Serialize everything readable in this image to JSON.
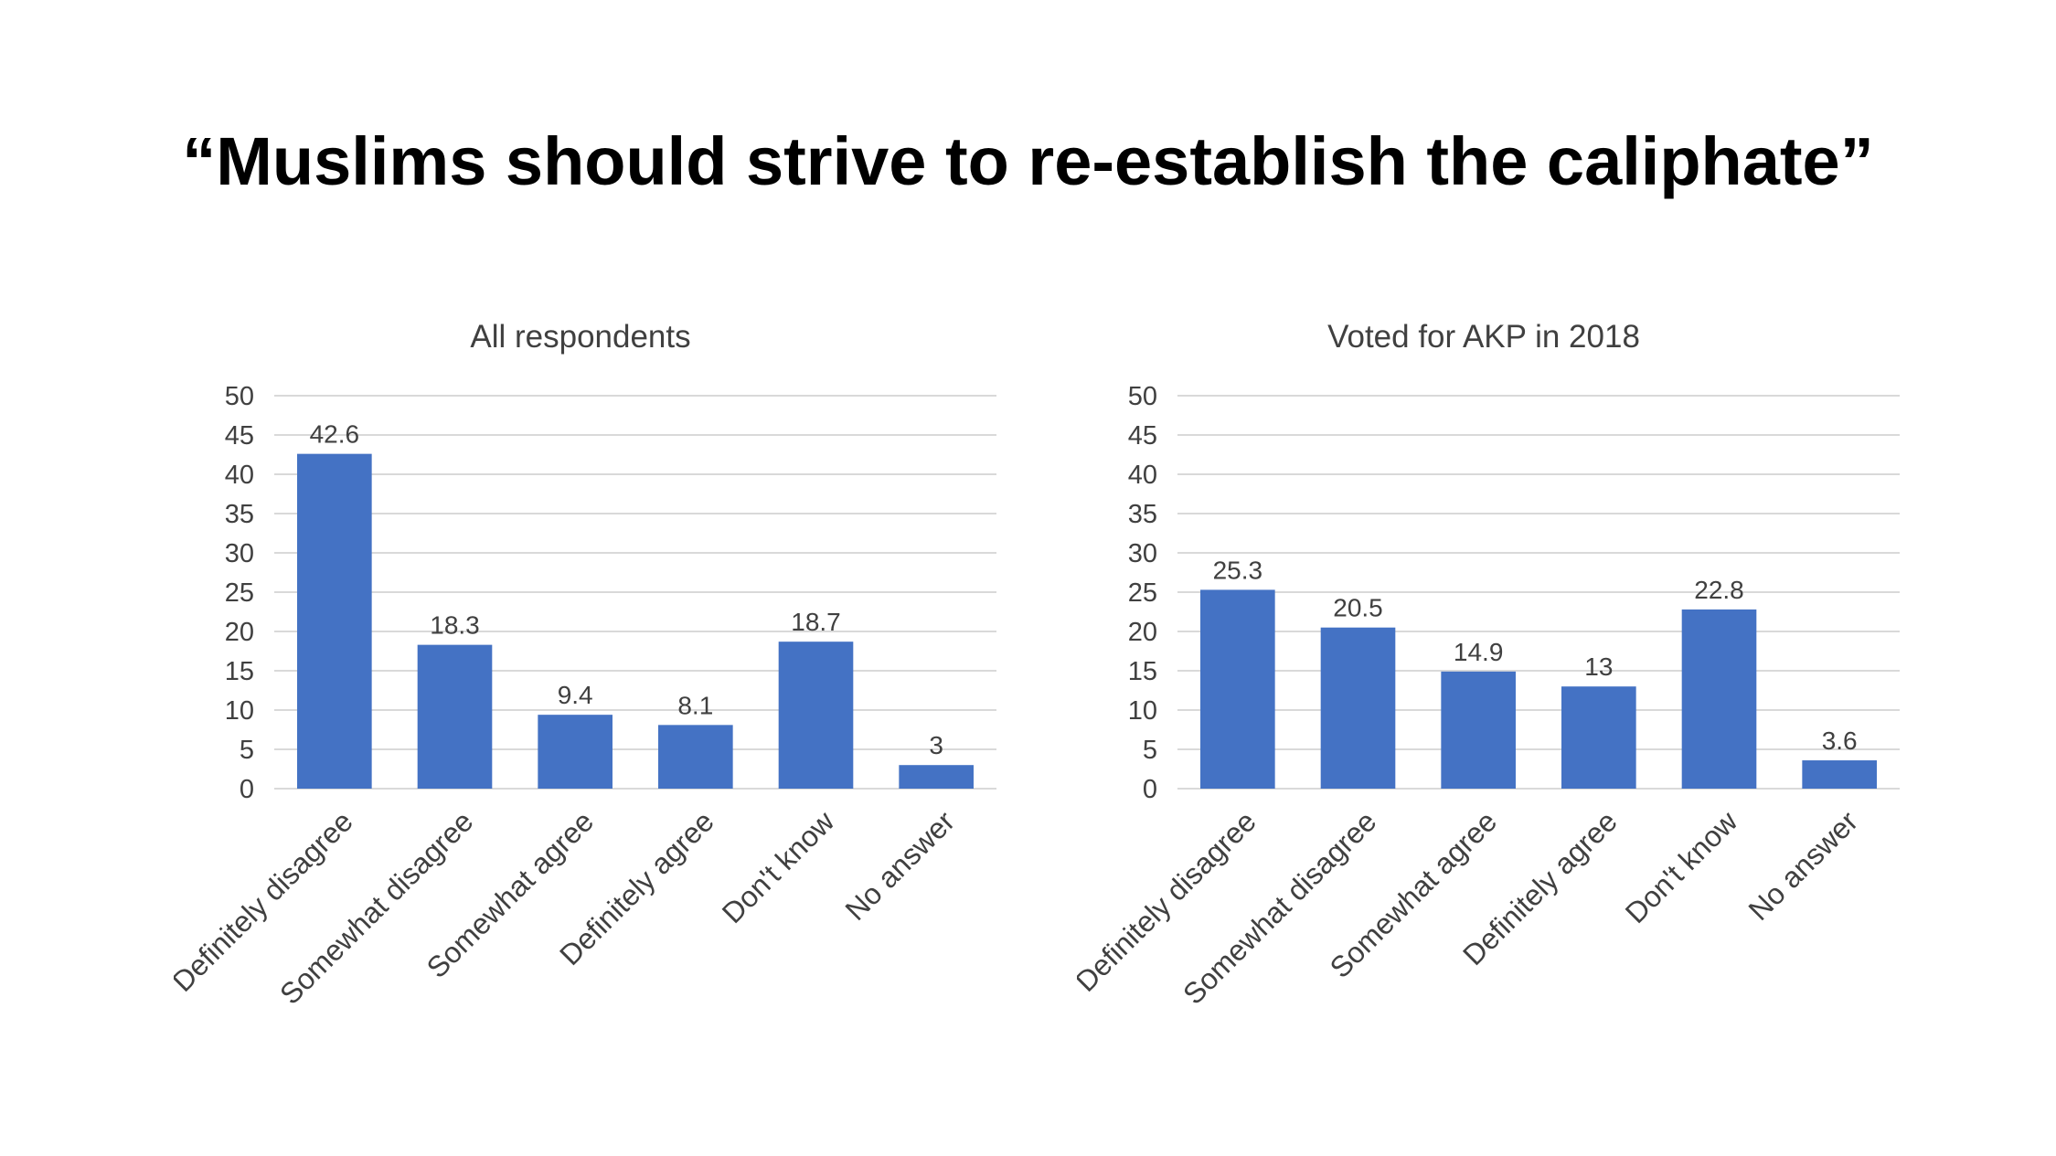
{
  "slide": {
    "title": "“Muslims should strive to re-establish the caliphate”"
  },
  "colors": {
    "bar": "#4472C4",
    "grid": "#D9D9D9",
    "axis_text": "#404040",
    "background": "#FFFFFF"
  },
  "chart_data": [
    {
      "type": "bar",
      "title": "All respondents",
      "categories": [
        "Definitely disagree",
        "Somewhat disagree",
        "Somewhat agree",
        "Definitely agree",
        "Don't know",
        "No answer"
      ],
      "values": [
        42.6,
        18.3,
        9.4,
        8.1,
        18.7,
        3
      ],
      "value_labels": [
        "42.6",
        "18.3",
        "9.4",
        "8.1",
        "18.7",
        "3"
      ],
      "ylim": [
        0,
        50
      ],
      "yticks": [
        0,
        5,
        10,
        15,
        20,
        25,
        30,
        35,
        40,
        45,
        50
      ],
      "xlabel": "",
      "ylabel": "",
      "grid": true,
      "legend": "none"
    },
    {
      "type": "bar",
      "title": "Voted for AKP in 2018",
      "categories": [
        "Definitely disagree",
        "Somewhat disagree",
        "Somewhat agree",
        "Definitely agree",
        "Don't know",
        "No answer"
      ],
      "values": [
        25.3,
        20.5,
        14.9,
        13,
        22.8,
        3.6
      ],
      "value_labels": [
        "25.3",
        "20.5",
        "14.9",
        "13",
        "22.8",
        "3.6"
      ],
      "ylim": [
        0,
        50
      ],
      "yticks": [
        0,
        5,
        10,
        15,
        20,
        25,
        30,
        35,
        40,
        45,
        50
      ],
      "xlabel": "",
      "ylabel": "",
      "grid": true,
      "legend": "none"
    }
  ]
}
